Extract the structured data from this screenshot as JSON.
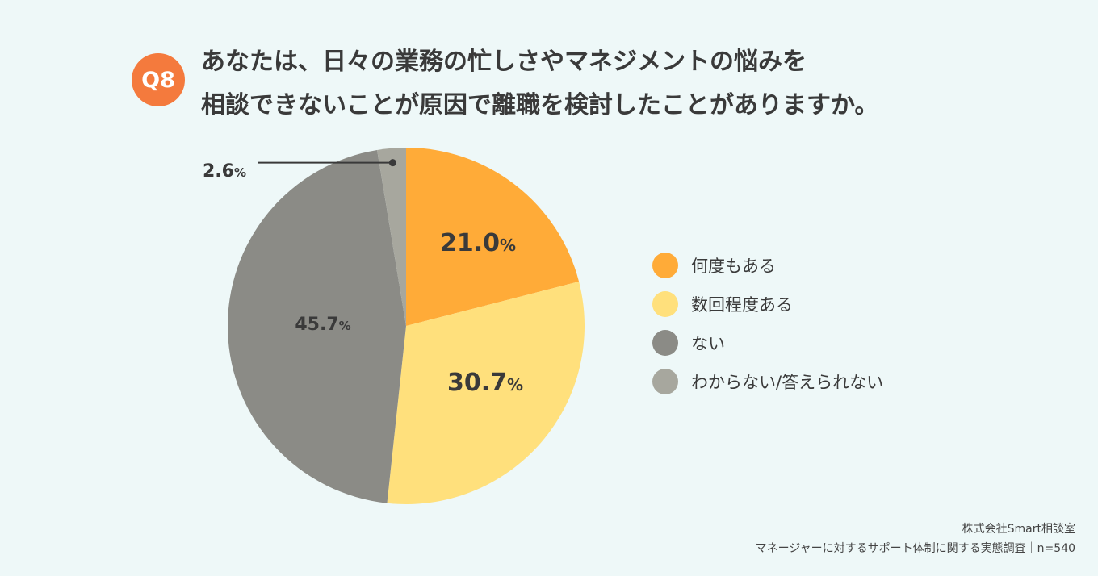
{
  "badge": "Q8",
  "question": {
    "line1": "あなたは、日々の業務の忙しさやマネジメントの悩みを",
    "line2": "相談できないことが原因で離職を検討したことがありますか。"
  },
  "chart_data": {
    "type": "pie",
    "categories": [
      "何度もある",
      "数回程度ある",
      "ない",
      "わからない/答えられない"
    ],
    "values": [
      21.0,
      30.7,
      45.7,
      2.6
    ],
    "value_labels": [
      "21.0",
      "30.7",
      "45.7",
      "2.6"
    ],
    "unit": "%",
    "colors": [
      "#ffab38",
      "#ffe07c",
      "#8b8b86",
      "#a7a79e"
    ],
    "legend_placement": "right"
  },
  "legend": [
    {
      "label": "何度もある",
      "color": "#ffab38"
    },
    {
      "label": "数回程度ある",
      "color": "#ffe07c"
    },
    {
      "label": "ない",
      "color": "#8b8b86"
    },
    {
      "label": "わからない/答えられない",
      "color": "#a7a79e"
    }
  ],
  "footer": {
    "line1": "株式会社Smart相談室",
    "line2": "マネージャーに対するサポート体制に関する実態調査｜n=540"
  }
}
